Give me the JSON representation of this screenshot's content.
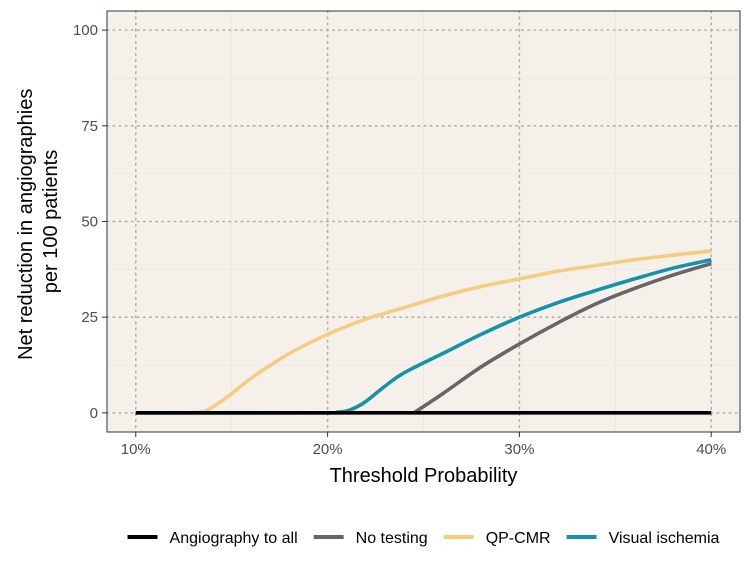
{
  "chart_data": {
    "type": "line",
    "xlabel": "Threshold Probability",
    "ylabel_lines": [
      "Net reduction in angiographies",
      "per 100 patients"
    ],
    "xlim": [
      0.085,
      0.415
    ],
    "ylim": [
      -5,
      105
    ],
    "x_ticks": [
      0.1,
      0.2,
      0.3,
      0.4
    ],
    "x_tick_labels": [
      "10%",
      "20%",
      "30%",
      "40%"
    ],
    "y_ticks": [
      0,
      25,
      50,
      75,
      100
    ],
    "y_tick_labels": [
      "0",
      "25",
      "50",
      "75",
      "100"
    ],
    "grid": true,
    "panel_background": "#f5f0ea",
    "legend_position": "bottom",
    "series": [
      {
        "name": "Angiography to all",
        "color": "#000000",
        "x": [
          0.1,
          0.4
        ],
        "y": [
          0,
          0
        ]
      },
      {
        "name": "No testing",
        "color": "#666666",
        "x": [
          0.245,
          0.26,
          0.28,
          0.3,
          0.32,
          0.34,
          0.36,
          0.38,
          0.4
        ],
        "y": [
          0,
          5,
          12,
          18,
          23.5,
          28.5,
          32.5,
          36,
          39
        ]
      },
      {
        "name": "QP-CMR",
        "color": "#f5cd80",
        "x": [
          0.1,
          0.125,
          0.135,
          0.14,
          0.15,
          0.16,
          0.18,
          0.2,
          0.22,
          0.24,
          0.26,
          0.28,
          0.3,
          0.32,
          0.34,
          0.36,
          0.38,
          0.4
        ],
        "y": [
          0,
          0,
          0.3,
          1.5,
          5,
          9,
          15.5,
          20.5,
          24.5,
          27.5,
          30.5,
          33,
          35,
          37,
          38.5,
          40,
          41.2,
          42.3
        ]
      },
      {
        "name": "Visual ischemia",
        "color": "#1592a8",
        "x": [
          0.1,
          0.2,
          0.205,
          0.21,
          0.215,
          0.22,
          0.23,
          0.24,
          0.26,
          0.28,
          0.3,
          0.32,
          0.34,
          0.36,
          0.38,
          0.4
        ],
        "y": [
          0,
          0,
          0.2,
          0.5,
          1.5,
          3,
          7,
          10.5,
          15.5,
          20.5,
          25,
          28.8,
          32,
          35,
          37.8,
          40
        ]
      }
    ]
  }
}
